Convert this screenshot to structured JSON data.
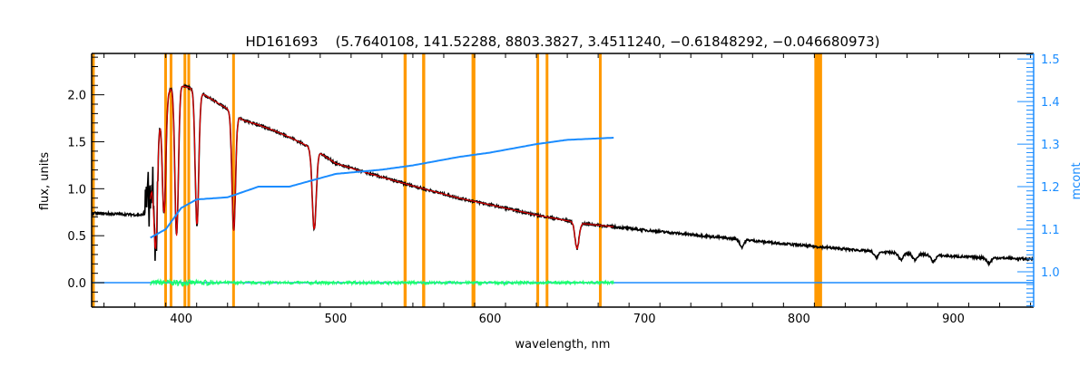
{
  "chart_data": {
    "type": "line",
    "title": "HD161693    (5.7640108, 141.52288, 8803.3827, 3.4511240, −0.61848292, −0.046680973)",
    "xlabel": "wavelength, nm",
    "ylabel": "flux, units",
    "y2label": "mcont",
    "xlim": [
      342,
      952
    ],
    "ylim": [
      -0.26,
      2.44
    ],
    "y2lim": [
      0.917,
      1.513
    ],
    "xticks": [
      400,
      500,
      600,
      700,
      800,
      900
    ],
    "yticks": [
      0.0,
      0.5,
      1.0,
      1.5,
      2.0
    ],
    "yticklabels": [
      "0.0",
      "0.5",
      "1.0",
      "1.5",
      "2.0"
    ],
    "y2ticks": [
      1.0,
      1.1,
      1.2,
      1.3,
      1.4,
      1.5
    ],
    "y2ticklabels": [
      "1.0",
      "1.1",
      "1.2",
      "1.3",
      "1.4",
      "1.5"
    ],
    "colors": {
      "observed": "#000000",
      "model": "#e00000",
      "continuum": "#1a8cff",
      "residual": "#1aff6e",
      "mask": "#ff9900",
      "axis2": "#1a8cff"
    },
    "observed_flux": {
      "x": [
        342,
        360,
        375,
        380,
        385,
        390,
        395,
        400,
        410,
        420,
        430,
        440,
        450,
        460,
        470,
        480,
        490,
        500,
        520,
        550,
        580,
        600,
        630,
        660,
        700,
        750,
        800,
        850,
        900,
        952
      ],
      "y": [
        0.74,
        0.73,
        0.72,
        0.9,
        1.7,
        2.0,
        2.1,
        2.1,
        2.05,
        1.95,
        1.85,
        1.73,
        1.68,
        1.62,
        1.55,
        1.47,
        1.38,
        1.27,
        1.17,
        1.03,
        0.9,
        0.83,
        0.72,
        0.63,
        0.56,
        0.48,
        0.4,
        0.33,
        0.28,
        0.25
      ]
    },
    "absorption_lines": [
      {
        "center": 383.5,
        "depth": 1.1
      },
      {
        "center": 388.9,
        "depth": 1.2
      },
      {
        "center": 397.0,
        "depth": 1.6
      },
      {
        "center": 410.2,
        "depth": 1.45
      },
      {
        "center": 434.0,
        "depth": 1.25
      },
      {
        "center": 486.1,
        "depth": 0.85
      },
      {
        "center": 656.3,
        "depth": 0.28
      },
      {
        "center": 763.0,
        "depth": 0.08
      },
      {
        "center": 850.0,
        "depth": 0.06
      },
      {
        "center": 866.0,
        "depth": 0.07
      },
      {
        "center": 875.0,
        "depth": 0.06
      },
      {
        "center": 887.0,
        "depth": 0.07
      },
      {
        "center": 923.0,
        "depth": 0.06
      }
    ],
    "model_range": [
      380,
      680
    ],
    "continuum": {
      "x": [
        380,
        390,
        400,
        410,
        430,
        450,
        470,
        500,
        530,
        550,
        580,
        600,
        630,
        650,
        680
      ],
      "y2": [
        1.08,
        1.1,
        1.15,
        1.17,
        1.175,
        1.2,
        1.2,
        1.23,
        1.24,
        1.25,
        1.27,
        1.28,
        1.3,
        1.31,
        1.315
      ]
    },
    "residual_range": [
      380,
      680
    ],
    "mask_bands": [
      [
        342,
        344
      ],
      [
        389,
        390.5
      ],
      [
        392.5,
        394
      ],
      [
        401.5,
        403
      ],
      [
        404,
        405.5
      ],
      [
        433,
        434.5
      ],
      [
        544,
        546
      ],
      [
        556,
        558
      ],
      [
        588,
        590.5
      ],
      [
        630,
        631.5
      ],
      [
        636,
        637.5
      ],
      [
        670.5,
        672
      ],
      [
        810,
        815
      ]
    ]
  }
}
